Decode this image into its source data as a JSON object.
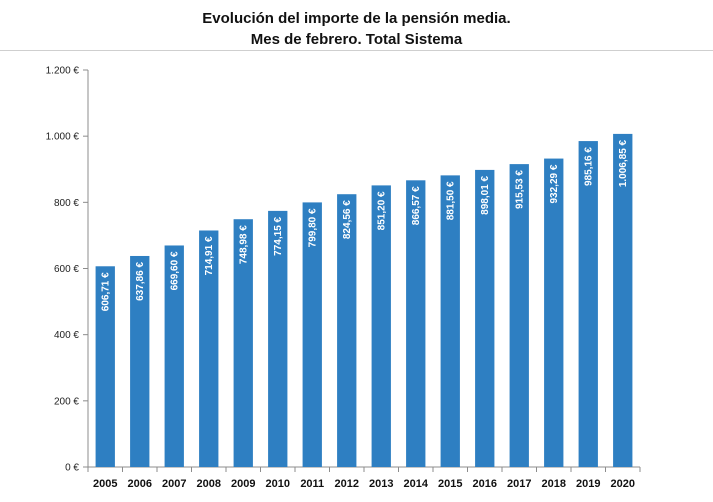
{
  "chart_data": {
    "type": "bar",
    "title": "Evolución del importe de la pensión media.",
    "subtitle": "Mes de febrero. Total Sistema",
    "categories": [
      "2005",
      "2006",
      "2007",
      "2008",
      "2009",
      "2010",
      "2011",
      "2012",
      "2013",
      "2014",
      "2015",
      "2016",
      "2017",
      "2018",
      "2019",
      "2020"
    ],
    "values": [
      606.71,
      637.86,
      669.6,
      714.91,
      748.98,
      774.15,
      799.8,
      824.56,
      851.2,
      866.57,
      881.5,
      898.01,
      915.53,
      932.29,
      985.16,
      1006.85
    ],
    "data_labels": [
      "606,71 €",
      "637,86 €",
      "669,60 €",
      "714,91 €",
      "748,98 €",
      "774,15 €",
      "799,80 €",
      "824,56 €",
      "851,20 €",
      "866,57 €",
      "881,50 €",
      "898,01 €",
      "915,53 €",
      "932,29 €",
      "985,16 €",
      "1.006,85 €"
    ],
    "y_ticks": [
      0,
      200,
      400,
      600,
      800,
      1000,
      1200
    ],
    "y_tick_labels": [
      "0 €",
      "200 €",
      "400 €",
      "600 €",
      "800 €",
      "1.000 €",
      "1.200 €"
    ],
    "ylim": [
      0,
      1200
    ],
    "xlabel": "",
    "ylabel": "",
    "grid": false,
    "colors": {
      "bar": "#2e7fc2",
      "axis": "#8c8c8c",
      "label": "#ffffff"
    }
  }
}
